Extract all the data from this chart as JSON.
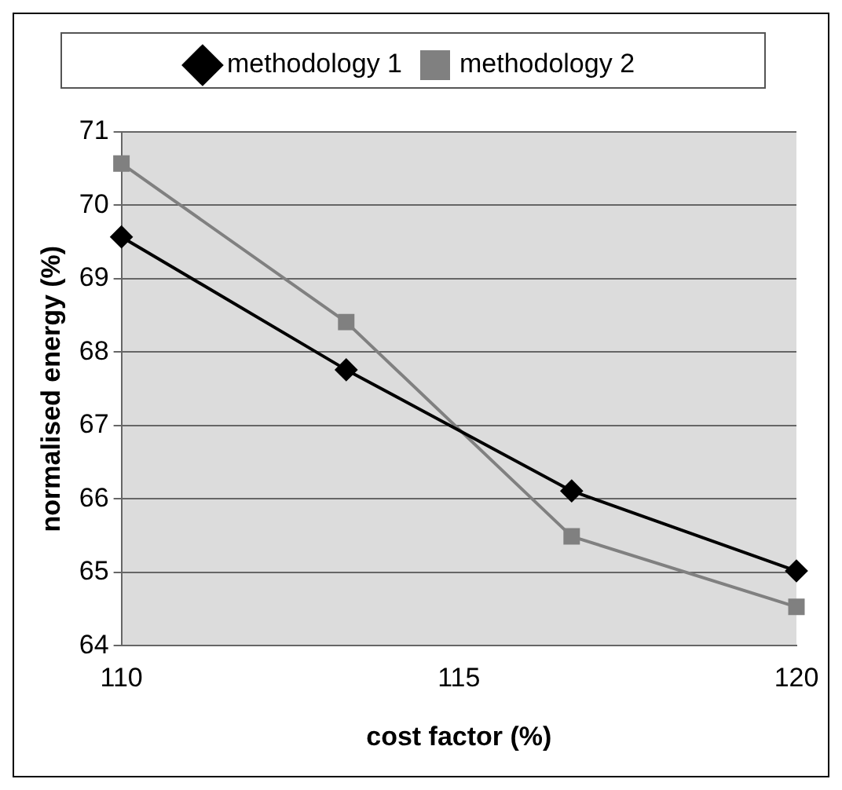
{
  "chart_data": {
    "type": "line",
    "xlabel": "cost factor (%)",
    "ylabel": "normalised energy (%)",
    "x": [
      110,
      113.33,
      116.67,
      120
    ],
    "series": [
      {
        "name": "methodology 1",
        "color": "#000000",
        "marker": "diamond",
        "values": [
          69.57,
          67.76,
          66.11,
          65.02
        ]
      },
      {
        "name": "methodology 2",
        "color": "#808080",
        "marker": "square",
        "values": [
          70.57,
          68.41,
          65.49,
          64.53
        ]
      }
    ],
    "xlim": [
      110,
      120
    ],
    "xticks": [
      110,
      115,
      120
    ],
    "ylim": [
      64,
      71
    ],
    "yticks": [
      64,
      65,
      66,
      67,
      68,
      69,
      70,
      71
    ],
    "grid": "y",
    "legend": "top"
  }
}
